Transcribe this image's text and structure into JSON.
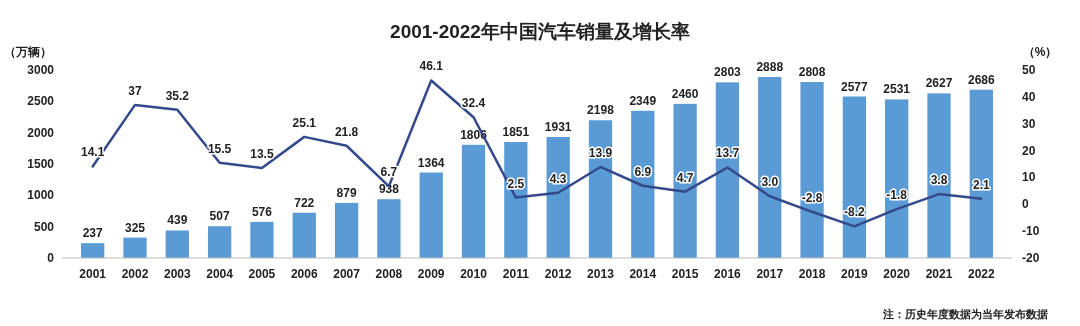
{
  "chart_data": {
    "type": "bar",
    "title": "2001-2022年中国汽车销量及增长率",
    "ylabel": "（万辆）",
    "y2label": "（%）",
    "categories": [
      "2001",
      "2002",
      "2003",
      "2004",
      "2005",
      "2006",
      "2007",
      "2008",
      "2009",
      "2010",
      "2011",
      "2012",
      "2013",
      "2014",
      "2015",
      "2016",
      "2017",
      "2018",
      "2019",
      "2020",
      "2021",
      "2022"
    ],
    "series": [
      {
        "color": "#5b9bd5",
        "values": [
          237,
          325,
          439,
          507,
          576,
          722,
          879,
          938,
          1364,
          1806,
          1851,
          1931,
          2198,
          2349,
          2460,
          2803,
          2888,
          2808,
          2577,
          2531,
          2627,
          2686
        ]
      },
      {
        "type": "line",
        "axis": "y2",
        "color": "#34498c",
        "values": [
          14.1,
          37,
          35.2,
          15.5,
          13.5,
          25.1,
          21.8,
          6.7,
          46.1,
          32.4,
          2.5,
          4.3,
          13.9,
          6.9,
          4.7,
          13.7,
          3.0,
          -2.8,
          -8.2,
          -1.8,
          3.8,
          2.1
        ],
        "value_labels": [
          "14.1",
          "37",
          "35.2",
          "15.5",
          "13.5",
          "25.1",
          "21.8",
          "6.7",
          "46.1",
          "32.4",
          "2.5",
          "4.3",
          "13.9",
          "6.9",
          "4.7",
          "13.7",
          "3.0",
          "-2.8",
          "-8.2",
          "-1.8",
          "3.8",
          "2.1"
        ]
      }
    ],
    "ylim": [
      0,
      3000
    ],
    "yticks": [
      0,
      500,
      1000,
      1500,
      2000,
      2500,
      3000
    ],
    "y2lim": [
      -20,
      50
    ],
    "y2ticks": [
      -20,
      -10,
      0,
      10,
      20,
      30,
      40,
      50
    ],
    "data_labels": true,
    "annotations": [
      "注：历史年度数据为当年发布数据"
    ]
  }
}
